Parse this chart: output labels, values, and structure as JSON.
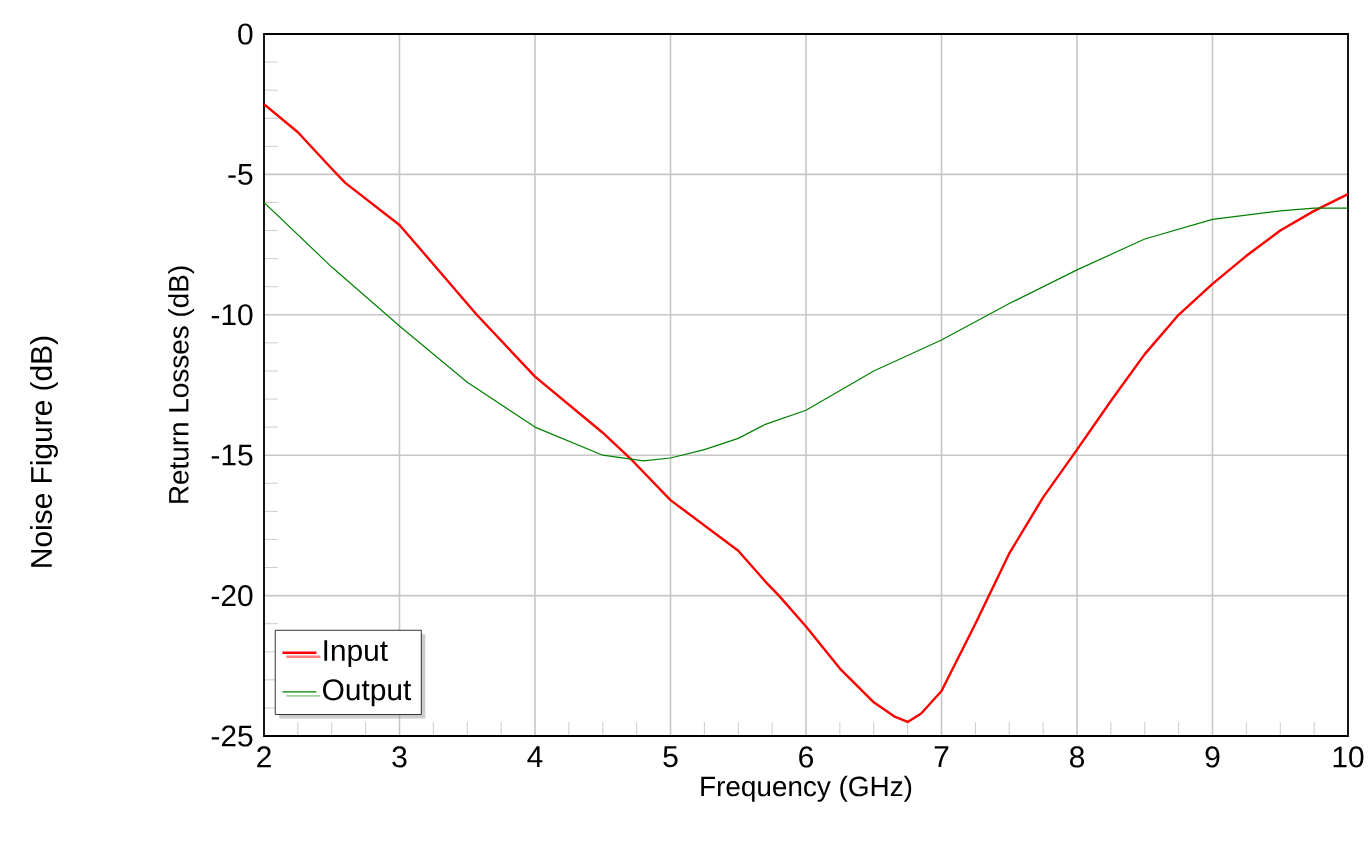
{
  "chart_data": {
    "type": "line",
    "xlabel": "Frequency (GHz)",
    "ylabel": "Return Losses (dB)",
    "annotations": [
      "Noise Figure (dB)"
    ],
    "xlim": [
      2,
      10
    ],
    "ylim": [
      -25,
      0
    ],
    "xticks": [
      2,
      3,
      4,
      5,
      6,
      7,
      8,
      9,
      10
    ],
    "yticks": [
      0,
      -5,
      -10,
      -15,
      -20,
      -25
    ],
    "grid": true,
    "legend": "bottom left",
    "marker": "none",
    "line_style": "solid",
    "series": [
      {
        "name": "Input",
        "color": "#ff0000",
        "x": [
          2,
          2.25,
          2.5,
          2.6,
          3,
          3.25,
          3.57,
          4,
          4.5,
          4.7,
          5,
          5.25,
          5.5,
          5.7,
          5.8,
          6,
          6.25,
          6.5,
          6.65,
          6.75,
          6.85,
          7,
          7.25,
          7.5,
          7.75,
          8,
          8.26,
          8.5,
          8.75,
          9,
          9.25,
          9.5,
          9.75,
          10
        ],
        "values": [
          -2.5,
          -3.5,
          -4.8,
          -5.3,
          -6.8,
          -8.2,
          -10,
          -12.2,
          -14.2,
          -15.1,
          -16.6,
          -17.5,
          -18.4,
          -19.5,
          -20.0,
          -21.1,
          -22.6,
          -23.8,
          -24.3,
          -24.5,
          -24.2,
          -23.4,
          -21.0,
          -18.5,
          -16.5,
          -14.8,
          -13.0,
          -11.4,
          -10.0,
          -8.9,
          -7.9,
          -7.0,
          -6.3,
          -5.7
        ]
      },
      {
        "name": "Output",
        "color": "#008000",
        "x": [
          2,
          2.5,
          3,
          3.5,
          4,
          4.5,
          4.8,
          5,
          5.25,
          5.5,
          5.7,
          6,
          6.5,
          7,
          7.5,
          8,
          8.5,
          9,
          9.5,
          9.75,
          10
        ],
        "values": [
          -6.0,
          -8.3,
          -10.4,
          -12.4,
          -14.0,
          -15.0,
          -15.2,
          -15.1,
          -14.8,
          -14.4,
          -13.9,
          -13.4,
          -12.0,
          -10.9,
          -9.6,
          -8.4,
          -7.3,
          -6.6,
          -6.3,
          -6.2,
          -6.2
        ]
      }
    ]
  }
}
